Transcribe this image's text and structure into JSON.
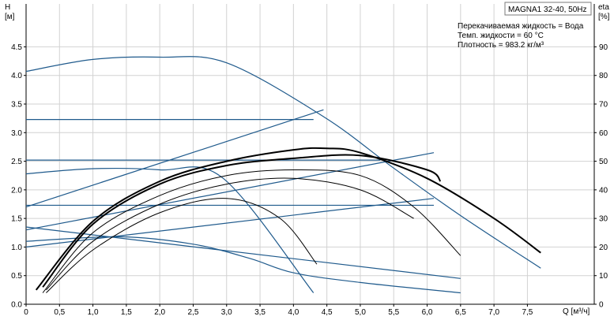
{
  "chart_data": {
    "type": "line",
    "title": "MAGNA1 32-40, 50Hz",
    "annotations": [
      "Перекачиваемая жидкость = Вода",
      "Темп. жидкости = 60 °C",
      "Плотность = 983.2 кг/м³"
    ],
    "x_axis": {
      "label": "Q [м³/ч]",
      "min": 0,
      "max": 8.5,
      "ticks": [
        "0",
        "0,5",
        "1,0",
        "1,5",
        "2,0",
        "2,5",
        "3,0",
        "3,5",
        "4,0",
        "4,5",
        "5,0",
        "5,5",
        "6,0",
        "6,5",
        "7,0",
        "7,5"
      ]
    },
    "y_left": {
      "label_top": "H",
      "label_unit": "[м]",
      "min": 0,
      "max": 5.25,
      "ticks": [
        "0.0",
        "0.5",
        "1.0",
        "1.5",
        "2.0",
        "2.5",
        "3.0",
        "3.5",
        "4.0",
        "4.5"
      ]
    },
    "y_right": {
      "label_top": "eta",
      "label_unit": "[%]",
      "min": 0,
      "max": 105,
      "ticks": [
        "0",
        "10",
        "20",
        "30",
        "40",
        "50",
        "60",
        "70",
        "80",
        "90"
      ]
    },
    "grid": true,
    "head_curves": [
      {
        "x": [
          0,
          1,
          2,
          3,
          4.45,
          5.5,
          6.5,
          7.7
        ],
        "y": [
          4.07,
          4.28,
          4.32,
          4.22,
          3.28,
          2.38,
          1.55,
          0.63
        ]
      },
      {
        "x": [
          0,
          1,
          2,
          2.95,
          4.3
        ],
        "y": [
          2.28,
          2.37,
          2.35,
          2.2,
          0.2
        ]
      },
      {
        "x": [
          0,
          1.4,
          2.5,
          3.35,
          4.0,
          5.0,
          6.5
        ],
        "y": [
          1.1,
          1.18,
          1.05,
          0.8,
          0.55,
          0.38,
          0.2
        ]
      }
    ],
    "sys_lines": [
      {
        "x": [
          0,
          4.45
        ],
        "y": [
          1.7,
          3.4
        ]
      },
      {
        "x": [
          0,
          6.1
        ],
        "y": [
          1.3,
          2.65
        ]
      },
      {
        "x": [
          0,
          6.1
        ],
        "y": [
          1.0,
          1.85
        ]
      },
      {
        "x": [
          0,
          6.5
        ],
        "y": [
          1.35,
          0.45
        ]
      }
    ],
    "const_lines": [
      {
        "y": 3.23,
        "x_end": 4.3
      },
      {
        "y": 2.52,
        "x_end": 5.3
      },
      {
        "y": 1.73,
        "x_end": 6.1
      }
    ],
    "eff_curves": [
      {
        "bold": true,
        "x": [
          0.15,
          1,
          2,
          3,
          4,
          4.5,
          5,
          6,
          7,
          7.7
        ],
        "y": [
          5,
          29,
          43,
          50,
          54,
          54.5,
          53,
          44,
          30,
          18
        ]
      },
      {
        "bold": true,
        "x": [
          0.25,
          1,
          2,
          3,
          4,
          5,
          6,
          6.2
        ],
        "y": [
          6,
          28,
          42,
          48.5,
          51,
          52,
          47,
          43
        ]
      },
      {
        "bold": false,
        "x": [
          0.25,
          1,
          2,
          3,
          4,
          5,
          5.8,
          6.5
        ],
        "y": [
          4,
          25,
          38,
          45,
          47,
          45,
          34,
          17
        ]
      },
      {
        "bold": false,
        "x": [
          0.3,
          1,
          2,
          3,
          4,
          5,
          5.8
        ],
        "y": [
          5,
          22,
          35,
          42,
          44,
          40,
          30
        ]
      },
      {
        "bold": false,
        "x": [
          0.3,
          1,
          2,
          3,
          3.8,
          4.35
        ],
        "y": [
          4,
          19,
          32,
          37,
          30,
          14
        ]
      }
    ]
  }
}
